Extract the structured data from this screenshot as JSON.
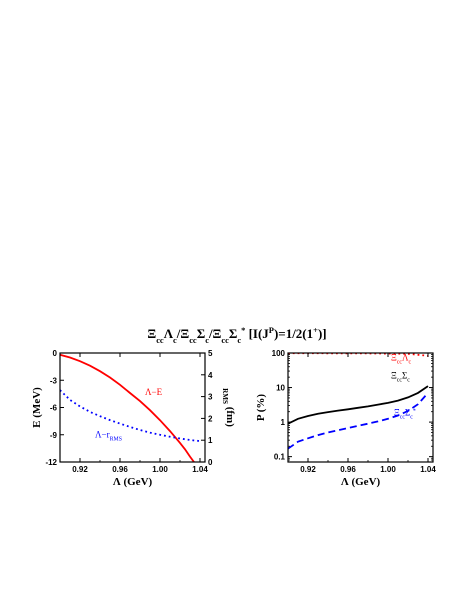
{
  "title": {
    "main": "Ξcc Λc /Ξcc Σc /Ξcc Σc* [I(JP)=1/2(1+)]",
    "parts": [
      {
        "t": "Ξ"
      },
      {
        "t": "cc",
        "sub": true
      },
      {
        "t": "Λ"
      },
      {
        "t": "c",
        "sub": true
      },
      {
        "t": "/Ξ"
      },
      {
        "t": "cc",
        "sub": true
      },
      {
        "t": "Σ"
      },
      {
        "t": "c",
        "sub": true
      },
      {
        "t": "/Ξ"
      },
      {
        "t": "cc",
        "sub": true
      },
      {
        "t": "Σ"
      },
      {
        "t": "c",
        "sub": true
      },
      {
        "t": "*",
        "sup": true
      },
      {
        "t": " [I(J"
      },
      {
        "t": "P",
        "sup": true
      },
      {
        "t": ")=1/2(1"
      },
      {
        "t": "+",
        "sup": true
      },
      {
        "t": ")]"
      }
    ]
  },
  "chart_data": [
    {
      "type": "line",
      "xlabel": "Λ (GeV)",
      "ylabel": "E (MeV)",
      "y2label": "rRMS (fm)",
      "xlim": [
        0.9,
        1.045
      ],
      "ylim": [
        -12,
        0
      ],
      "y2lim": [
        0,
        5
      ],
      "xticks": [
        0.92,
        0.96,
        1.0,
        1.04
      ],
      "xtick_labels": [
        "0.92",
        "0.96",
        "1.00",
        "1.04"
      ],
      "yticks": [
        0,
        -3,
        -6,
        -9,
        -12
      ],
      "ytick_labels": [
        "0",
        "-3",
        "-6",
        "-9",
        "-12"
      ],
      "y2ticks": [
        0,
        1,
        2,
        3,
        4,
        5
      ],
      "y2tick_labels": [
        "0",
        "1",
        "2",
        "3",
        "4",
        "5"
      ],
      "series": [
        {
          "name": "Λ−E",
          "axis": "left",
          "color": "#ff0000",
          "style": "solid",
          "x": [
            0.9,
            0.91,
            0.92,
            0.93,
            0.94,
            0.95,
            0.96,
            0.97,
            0.98,
            0.99,
            1.0,
            1.01,
            1.02,
            1.025,
            1.03,
            1.034
          ],
          "y": [
            -0.2,
            -0.5,
            -0.9,
            -1.4,
            -2.0,
            -2.7,
            -3.5,
            -4.4,
            -5.3,
            -6.3,
            -7.4,
            -8.6,
            -9.9,
            -10.6,
            -11.4,
            -12.0
          ]
        },
        {
          "name": "Λ−rRMS",
          "axis": "right",
          "color": "#0000ff",
          "style": "dotted",
          "x": [
            0.9,
            0.91,
            0.92,
            0.93,
            0.94,
            0.95,
            0.96,
            0.97,
            0.98,
            0.99,
            1.0,
            1.01,
            1.02,
            1.03,
            1.04
          ],
          "y": [
            3.3,
            2.85,
            2.55,
            2.3,
            2.1,
            1.92,
            1.76,
            1.61,
            1.47,
            1.35,
            1.25,
            1.16,
            1.08,
            1.01,
            0.96
          ]
        }
      ],
      "annotations": [
        {
          "text": "Λ−E",
          "color": "#ff0000",
          "x": 0.985,
          "y": -4.6
        },
        {
          "text": "Λ−r",
          "sub": "RMS",
          "color": "#0000ff",
          "x": 0.935,
          "y": -9.3
        }
      ]
    },
    {
      "type": "line",
      "xlabel": "Λ (GeV)",
      "ylabel": "P (%)",
      "xlim": [
        0.9,
        1.045
      ],
      "ylim": [
        0.07,
        100
      ],
      "yscale": "log",
      "xticks": [
        0.92,
        0.96,
        1.0,
        1.04
      ],
      "xtick_labels": [
        "0.92",
        "0.96",
        "1.00",
        "1.04"
      ],
      "yticks": [
        100,
        10,
        1,
        0.1
      ],
      "ytick_labels": [
        "100",
        "10",
        "1",
        "0.1"
      ],
      "series": [
        {
          "name": "ΞccΛc",
          "color": "#ff0000",
          "style": "dotted",
          "x": [
            0.9,
            0.92,
            0.94,
            0.96,
            0.98,
            1.0,
            1.02,
            1.04
          ],
          "y": [
            98.9,
            98.4,
            98.0,
            97.6,
            97.2,
            96.4,
            94.9,
            83.0
          ]
        },
        {
          "name": "ΞccΣc",
          "color": "#000000",
          "style": "solid",
          "x": [
            0.9,
            0.91,
            0.92,
            0.93,
            0.94,
            0.95,
            0.96,
            0.97,
            0.98,
            0.99,
            1.0,
            1.01,
            1.02,
            1.03,
            1.04
          ],
          "y": [
            0.9,
            1.25,
            1.5,
            1.75,
            1.95,
            2.15,
            2.35,
            2.6,
            2.85,
            3.2,
            3.6,
            4.2,
            5.2,
            7.0,
            11.0
          ]
        },
        {
          "name": "ΞccΣc*",
          "color": "#0000ff",
          "style": "dashed",
          "x": [
            0.9,
            0.91,
            0.92,
            0.93,
            0.94,
            0.95,
            0.96,
            0.97,
            0.98,
            0.99,
            1.0,
            1.01,
            1.02,
            1.03,
            1.04
          ],
          "y": [
            0.17,
            0.27,
            0.34,
            0.42,
            0.5,
            0.58,
            0.67,
            0.78,
            0.9,
            1.05,
            1.25,
            1.55,
            2.1,
            3.3,
            7.0
          ]
        }
      ],
      "annotations": [
        {
          "parts": [
            {
              "t": "Ξ"
            },
            {
              "t": "cc",
              "sub": true
            },
            {
              "t": "Λ"
            },
            {
              "t": "c",
              "sub": true
            }
          ],
          "color": "#ff0000",
          "x": 1.003,
          "y": 60
        },
        {
          "parts": [
            {
              "t": "Ξ"
            },
            {
              "t": "cc",
              "sub": true
            },
            {
              "t": "Σ"
            },
            {
              "t": "c",
              "sub": true
            }
          ],
          "color": "#000000",
          "x": 1.003,
          "y": 18
        },
        {
          "parts": [
            {
              "t": "Ξ"
            },
            {
              "t": "cc",
              "sub": true
            },
            {
              "t": "Σ"
            },
            {
              "t": "c",
              "sub": true
            },
            {
              "t": "*",
              "sup": true
            }
          ],
          "color": "#0000ff",
          "x": 1.006,
          "y": 1.55
        }
      ]
    }
  ]
}
